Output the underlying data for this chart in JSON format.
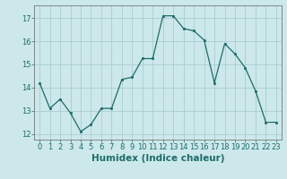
{
  "x": [
    0,
    1,
    2,
    3,
    4,
    5,
    6,
    7,
    8,
    9,
    10,
    11,
    12,
    13,
    14,
    15,
    16,
    17,
    18,
    19,
    20,
    21,
    22,
    23
  ],
  "y": [
    14.2,
    13.1,
    13.5,
    12.9,
    12.1,
    12.4,
    13.1,
    13.1,
    14.35,
    14.45,
    15.25,
    15.25,
    17.1,
    17.1,
    16.55,
    16.45,
    16.05,
    14.2,
    15.9,
    15.45,
    14.85,
    13.85,
    12.5,
    12.5
  ],
  "line_color": "#1e6b6b",
  "marker_color": "#1e6b6b",
  "bg_color": "#cce8ea",
  "grid_color": "#aacdd0",
  "axis_bg": "#cce8ea",
  "xlabel": "Humidex (Indice chaleur)",
  "ylim": [
    11.75,
    17.55
  ],
  "xlim": [
    -0.5,
    23.5
  ],
  "yticks": [
    12,
    13,
    14,
    15,
    16,
    17
  ],
  "xticks": [
    0,
    1,
    2,
    3,
    4,
    5,
    6,
    7,
    8,
    9,
    10,
    11,
    12,
    13,
    14,
    15,
    16,
    17,
    18,
    19,
    20,
    21,
    22,
    23
  ],
  "tick_fontsize": 6.0,
  "xlabel_fontsize": 7.5,
  "spine_color": "#777777",
  "tick_color": "#1e6b6b"
}
